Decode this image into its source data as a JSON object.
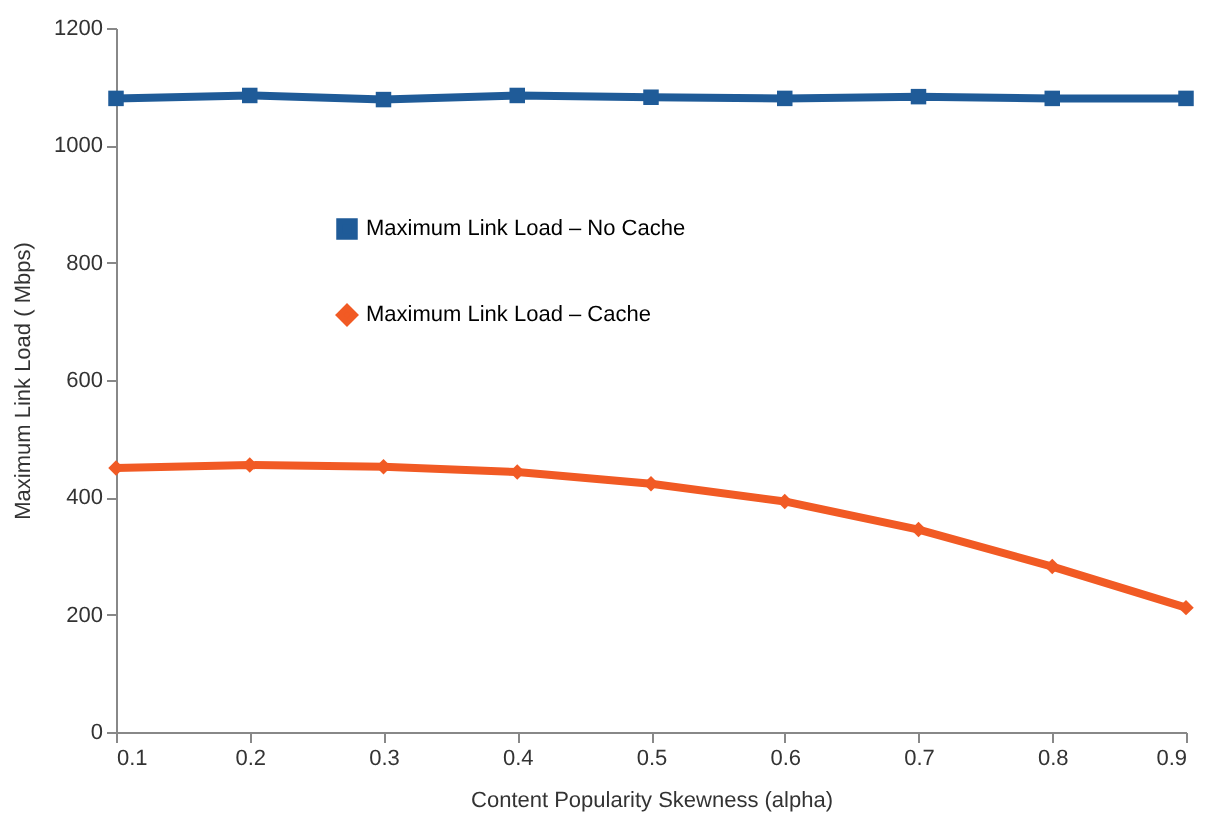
{
  "chart_data": {
    "type": "line",
    "xlabel": "Content Popularity Skewness (alpha)",
    "ylabel": "Maximum Link Load ( Mbps)",
    "x": [
      0.1,
      0.2,
      0.3,
      0.4,
      0.5,
      0.6,
      0.7,
      0.8,
      0.9
    ],
    "series": [
      {
        "name": "Maximum Link Load – No Cache",
        "color": "#1f5b98",
        "marker": "square",
        "values": [
          1080,
          1085,
          1078,
          1085,
          1082,
          1080,
          1083,
          1080,
          1080
        ]
      },
      {
        "name": "Maximum Link Load – Cache",
        "color": "#f15a24",
        "marker": "diamond",
        "values": [
          450,
          455,
          452,
          443,
          423,
          393,
          345,
          282,
          212
        ]
      }
    ],
    "xlim": [
      0.1,
      0.9
    ],
    "xticks": [
      0.1,
      0.2,
      0.3,
      0.4,
      0.5,
      0.6,
      0.7,
      0.8,
      0.9
    ],
    "ylim": [
      0,
      1200
    ],
    "yticks": [
      0,
      200,
      400,
      600,
      800,
      1000,
      1200
    ],
    "grid": false,
    "legend": "top left",
    "line_style": "solid"
  }
}
